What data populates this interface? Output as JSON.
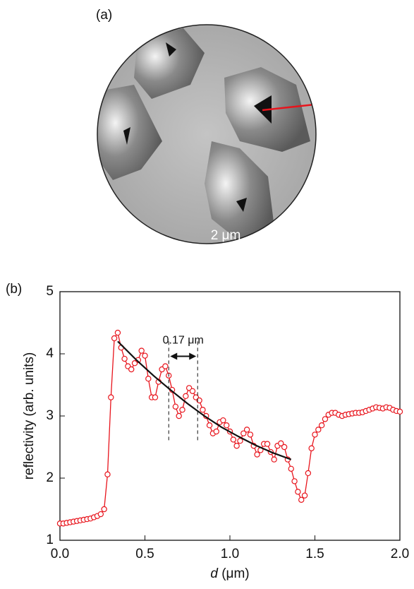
{
  "panel_a": {
    "label": "(a)",
    "scale_bar": "2 μm"
  },
  "chart_data": {
    "type": "line",
    "panel_label": "(b)",
    "xlabel_var": "d",
    "xlabel_unit": "(μm)",
    "ylabel": "reflectivity (arb. units)",
    "xlim": [
      0,
      2
    ],
    "ylim": [
      1,
      5
    ],
    "xticks": [
      {
        "value": 0,
        "label": "0.0"
      },
      {
        "value": 0.5,
        "label": "0.5"
      },
      {
        "value": 1,
        "label": "1.0"
      },
      {
        "value": 1.5,
        "label": "1.5"
      },
      {
        "value": 2,
        "label": "2.0"
      }
    ],
    "yticks": [
      1,
      2,
      3,
      4,
      5
    ],
    "x": [
      0,
      0.02,
      0.04,
      0.06,
      0.08,
      0.1,
      0.12,
      0.14,
      0.16,
      0.18,
      0.2,
      0.22,
      0.24,
      0.26,
      0.28,
      0.3,
      0.32,
      0.34,
      0.36,
      0.38,
      0.4,
      0.42,
      0.44,
      0.46,
      0.48,
      0.5,
      0.52,
      0.54,
      0.56,
      0.58,
      0.6,
      0.62,
      0.64,
      0.66,
      0.68,
      0.7,
      0.72,
      0.74,
      0.76,
      0.78,
      0.8,
      0.82,
      0.84,
      0.86,
      0.88,
      0.9,
      0.92,
      0.94,
      0.96,
      0.98,
      1,
      1.02,
      1.04,
      1.06,
      1.08,
      1.1,
      1.12,
      1.14,
      1.16,
      1.18,
      1.2,
      1.22,
      1.24,
      1.26,
      1.28,
      1.3,
      1.32,
      1.34,
      1.36,
      1.38,
      1.4,
      1.42,
      1.44,
      1.46,
      1.48,
      1.5,
      1.52,
      1.54,
      1.56,
      1.58,
      1.6,
      1.62,
      1.64,
      1.66,
      1.68,
      1.7,
      1.72,
      1.74,
      1.76,
      1.78,
      1.8,
      1.82,
      1.84,
      1.86,
      1.88,
      1.9,
      1.92,
      1.94,
      1.96,
      1.98,
      2
    ],
    "series": [
      {
        "color": "#e8141c",
        "values": [
          1.27,
          1.27,
          1.28,
          1.29,
          1.3,
          1.31,
          1.32,
          1.33,
          1.34,
          1.35,
          1.37,
          1.39,
          1.42,
          1.5,
          2.06,
          3.3,
          4.25,
          4.34,
          4.1,
          3.92,
          3.8,
          3.75,
          3.85,
          3.9,
          4.05,
          3.97,
          3.6,
          3.3,
          3.3,
          3.55,
          3.75,
          3.8,
          3.65,
          3.42,
          3.15,
          3.0,
          3.1,
          3.32,
          3.45,
          3.4,
          3.3,
          3.25,
          3.1,
          3.0,
          2.85,
          2.72,
          2.75,
          2.9,
          2.93,
          2.85,
          2.75,
          2.62,
          2.52,
          2.6,
          2.72,
          2.78,
          2.7,
          2.52,
          2.38,
          2.45,
          2.55,
          2.55,
          2.42,
          2.3,
          2.52,
          2.56,
          2.5,
          2.3,
          2.15,
          1.95,
          1.78,
          1.65,
          1.72,
          2.08,
          2.48,
          2.7,
          2.78,
          2.85,
          2.95,
          3.02,
          3.05,
          3.05,
          3.02,
          3.0,
          3.02,
          3.03,
          3.04,
          3.05,
          3.05,
          3.06,
          3.08,
          3.1,
          3.12,
          3.14,
          3.13,
          3.12,
          3.14,
          3.13,
          3.1,
          3.08,
          3.07
        ]
      },
      {
        "color": "#111111",
        "x": [
          0.34,
          0.45,
          0.55,
          0.65,
          0.75,
          0.85,
          0.95,
          1.05,
          1.15,
          1.25,
          1.36
        ],
        "values": [
          4.2,
          3.9,
          3.65,
          3.42,
          3.2,
          3.0,
          2.82,
          2.67,
          2.53,
          2.41,
          2.3
        ]
      }
    ],
    "annotation": {
      "text": "0.17 μm",
      "x": [
        0.64,
        0.81
      ]
    }
  }
}
